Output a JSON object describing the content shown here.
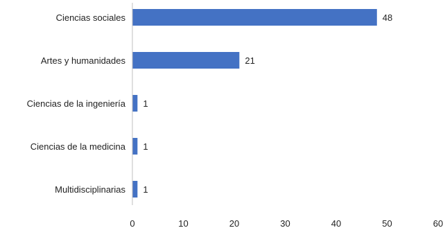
{
  "chart_data": {
    "type": "bar",
    "orientation": "horizontal",
    "categories": [
      "Ciencias sociales",
      "Artes y humanidades",
      "Ciencias de la ingeniería",
      "Ciencias de la medicina",
      "Multidisciplinarias"
    ],
    "values": [
      48,
      21,
      1,
      1,
      1
    ],
    "data_labels": [
      "48",
      "21",
      "1",
      "1",
      "1"
    ],
    "xlim": [
      0,
      60
    ],
    "x_ticks": [
      0,
      10,
      20,
      30,
      40,
      50,
      60
    ],
    "x_tick_labels": [
      "0",
      "10",
      "20",
      "30",
      "40",
      "50",
      "60"
    ],
    "grid": false,
    "legend": "none",
    "bar_color": "#4472C4"
  }
}
